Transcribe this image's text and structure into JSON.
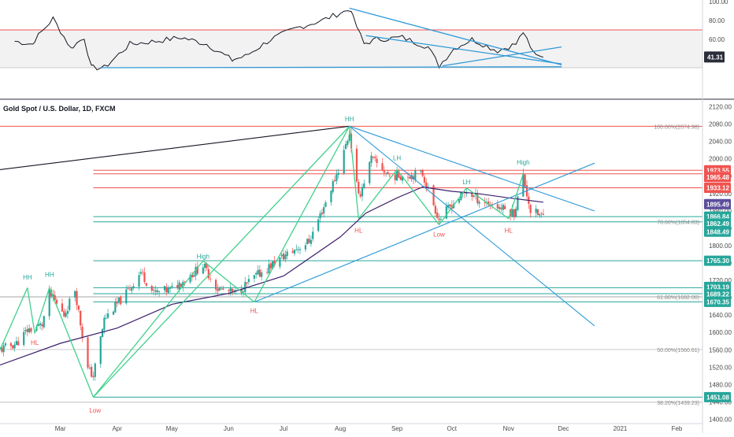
{
  "chart_data": [
    {
      "type": "line",
      "indicator_value": "41.31",
      "ylim": [
        0,
        100
      ],
      "y_ticks": [
        "100.00",
        "80.00",
        "60.00",
        "40.00"
      ],
      "overbought_level": 70,
      "oversold_level": 30,
      "series": [
        {
          "color": "#131722",
          "x": [
            "2020-02-05",
            "2020-02-15",
            "2020-02-26",
            "2020-03-07",
            "2020-03-14",
            "2020-03-18",
            "2020-03-25",
            "2020-04-08",
            "2020-04-22",
            "2020-05-06",
            "2020-05-20",
            "2020-06-03",
            "2020-06-10",
            "2020-06-24",
            "2020-07-08",
            "2020-07-22",
            "2020-08-01",
            "2020-08-07",
            "2020-08-14",
            "2020-08-21",
            "2020-09-04",
            "2020-09-18",
            "2020-09-24",
            "2020-10-02",
            "2020-10-12",
            "2020-10-26",
            "2020-11-05",
            "2020-11-09",
            "2020-11-13",
            "2020-11-20"
          ],
          "values": [
            58,
            55,
            82,
            50,
            62,
            30,
            30,
            55,
            58,
            62,
            55,
            38,
            42,
            60,
            72,
            80,
            88,
            92,
            55,
            60,
            62,
            52,
            32,
            50,
            60,
            48,
            55,
            68,
            50,
            41
          ]
        }
      ],
      "trendlines": [
        {
          "from": [
            "2020-03-23",
            30
          ],
          "to": [
            "2020-11-30",
            31
          ],
          "color": "#2e9ad8"
        },
        {
          "from": [
            "2020-08-06",
            93
          ],
          "to": [
            "2020-11-30",
            33
          ],
          "color": "#2e9ad8"
        },
        {
          "from": [
            "2020-08-15",
            64
          ],
          "to": [
            "2020-11-30",
            34
          ],
          "color": "#2e9ad8"
        },
        {
          "from": [
            "2020-09-26",
            32
          ],
          "to": [
            "2020-11-30",
            52
          ],
          "color": "#2e9ad8"
        }
      ]
    },
    {
      "type": "candlestick",
      "title": "Gold Spot / U.S. Dollar, 1D, FXCM",
      "x_ticks": [
        "Mar",
        "Apr",
        "May",
        "Jun",
        "Jul",
        "Aug",
        "Sep",
        "Oct",
        "Nov",
        "Dec",
        "2021",
        "Feb"
      ],
      "x_range": [
        "2020-01-28",
        "2021-02-15"
      ],
      "ylim": [
        1390,
        2130
      ],
      "y_ticks": [
        1400,
        1440,
        1480,
        1520,
        1560,
        1600,
        1640,
        1680,
        1720,
        1760,
        1800,
        1840,
        1880,
        1920,
        1960,
        2000,
        2040,
        2080,
        2120
      ],
      "bullish_color": "#26a69a",
      "bearish_color": "#ef5350",
      "price_anchors": {
        "x": [
          "2020-01-28",
          "2020-02-06",
          "2020-02-12",
          "2020-02-20",
          "2020-02-24",
          "2020-03-03",
          "2020-03-09",
          "2020-03-16",
          "2020-03-19",
          "2020-03-25",
          "2020-04-06",
          "2020-04-14",
          "2020-04-21",
          "2020-05-01",
          "2020-05-18",
          "2020-05-26",
          "2020-06-05",
          "2020-06-16",
          "2020-07-01",
          "2020-07-15",
          "2020-07-24",
          "2020-07-31",
          "2020-08-06",
          "2020-08-11",
          "2020-08-18",
          "2020-08-28",
          "2020-09-15",
          "2020-09-24",
          "2020-10-01",
          "2020-10-09",
          "2020-10-16",
          "2020-10-26",
          "2020-11-04",
          "2020-11-09",
          "2020-11-13",
          "2020-11-20"
        ],
        "values": [
          1560,
          1575,
          1605,
          1618,
          1690,
          1640,
          1700,
          1515,
          1500,
          1630,
          1690,
          1740,
          1690,
          1700,
          1755,
          1700,
          1690,
          1730,
          1775,
          1810,
          1900,
          1975,
          2060,
          1910,
          2000,
          1960,
          1965,
          1860,
          1895,
          1925,
          1905,
          1890,
          1875,
          1960,
          1880,
          1867
        ]
      },
      "moving_average": {
        "color": "#3b1e6b",
        "x": [
          "2020-01-28",
          "2020-03-01",
          "2020-04-01",
          "2020-05-01",
          "2020-06-01",
          "2020-07-01",
          "2020-08-01",
          "2020-08-15",
          "2020-09-01",
          "2020-09-15",
          "2020-10-01",
          "2020-10-15",
          "2020-11-01",
          "2020-11-20"
        ],
        "values": [
          1525,
          1575,
          1610,
          1665,
          1690,
          1730,
          1820,
          1875,
          1910,
          1935,
          1925,
          1920,
          1910,
          1900
        ]
      },
      "horizontal_levels": [
        {
          "price": 2074.98,
          "color": "#ef5350",
          "label": "100.00%(2074.98)"
        },
        {
          "price": 1973.55,
          "color": "#ef5350"
        },
        {
          "price": 1965.48,
          "color": "#ef5350"
        },
        {
          "price": 1933.12,
          "color": "#ef5350"
        },
        {
          "price": 1866.84,
          "color": "#26a69a"
        },
        {
          "price": 1854.83,
          "color": "#26a69a",
          "label": "78.60%(1854.83)"
        },
        {
          "price": 1765.3,
          "color": "#26a69a"
        },
        {
          "price": 1703.19,
          "color": "#26a69a"
        },
        {
          "price": 1689.22,
          "color": "#26a69a"
        },
        {
          "price": 1682.0,
          "color": "#888888",
          "label": "61.80%(1682.00)"
        },
        {
          "price": 1670.35,
          "color": "#26a69a"
        },
        {
          "price": 1560.61,
          "color": "#aaaaaa",
          "label": "50.00%(1560.61)"
        },
        {
          "price": 1451.08,
          "color": "#26a69a"
        },
        {
          "price": 1439.23,
          "color": "#aaaaaa",
          "label": "38.20%(1439.23)"
        }
      ],
      "price_badges": [
        {
          "text": "1973.55",
          "price": 1973.55,
          "color": "#ef5350"
        },
        {
          "text": "1965.48",
          "price": 1958.0,
          "color": "#ef5350"
        },
        {
          "text": "1933.12",
          "price": 1933.12,
          "color": "#ef5350"
        },
        {
          "text": "1895.49",
          "price": 1895.49,
          "color": "#5b4d9c"
        },
        {
          "text": "1866.84",
          "price": 1866.84,
          "color": "#26a69a"
        },
        {
          "text": "1862.49",
          "price": 1851.0,
          "color": "#26a69a"
        },
        {
          "text": "1848.49",
          "price": 1832.0,
          "color": "#26a69a"
        },
        {
          "text": "1765.30",
          "price": 1765.3,
          "color": "#26a69a"
        },
        {
          "text": "1703.19",
          "price": 1705.0,
          "color": "#26a69a"
        },
        {
          "text": "1689.22",
          "price": 1688.0,
          "color": "#26a69a"
        },
        {
          "text": "1670.35",
          "price": 1670.35,
          "color": "#26a69a"
        },
        {
          "text": "1451.08",
          "price": 1451.08,
          "color": "#26a69a"
        }
      ],
      "annotations": [
        {
          "text": "HH",
          "x": "2020-02-12",
          "price": 1727,
          "color": "#26a69a"
        },
        {
          "text": "HH",
          "x": "2020-02-24",
          "price": 1734,
          "color": "#26a69a"
        },
        {
          "text": "HL",
          "x": "2020-02-16",
          "price": 1577,
          "color": "#ef5350"
        },
        {
          "text": "Low",
          "x": "2020-03-20",
          "price": 1421,
          "color": "#ef5350"
        },
        {
          "text": "High",
          "x": "2020-05-18",
          "price": 1775,
          "color": "#26a69a"
        },
        {
          "text": "HL",
          "x": "2020-06-15",
          "price": 1650,
          "color": "#ef5350"
        },
        {
          "text": "HH",
          "x": "2020-08-06",
          "price": 2092,
          "color": "#26a69a"
        },
        {
          "text": "HL",
          "x": "2020-08-11",
          "price": 1835,
          "color": "#ef5350"
        },
        {
          "text": "LH",
          "x": "2020-09-01",
          "price": 2002,
          "color": "#26a69a"
        },
        {
          "text": "Low",
          "x": "2020-09-24",
          "price": 1826,
          "color": "#ef5350"
        },
        {
          "text": "LH",
          "x": "2020-10-09",
          "price": 1947,
          "color": "#26a69a"
        },
        {
          "text": "HL",
          "x": "2020-11-01",
          "price": 1835,
          "color": "#ef5350"
        },
        {
          "text": "High",
          "x": "2020-11-09",
          "price": 1992,
          "color": "#26a69a"
        }
      ],
      "trendlines": [
        {
          "from": [
            "2020-01-28",
            1975
          ],
          "to": [
            "2020-08-06",
            2075
          ],
          "color": "#131722"
        },
        {
          "from": [
            "2020-08-06",
            2075
          ],
          "to": [
            "2020-12-18",
            1615
          ],
          "color": "#2e9ad8"
        },
        {
          "from": [
            "2020-08-06",
            2075
          ],
          "to": [
            "2020-12-18",
            1880
          ],
          "color": "#2e9ad8"
        },
        {
          "from": [
            "2020-06-15",
            1670
          ],
          "to": [
            "2020-12-18",
            1990
          ],
          "color": "#2e9ad8"
        },
        {
          "from": [
            "2020-03-19",
            1451
          ],
          "to": [
            "2020-08-06",
            2075
          ],
          "color": "#3fd18b"
        },
        {
          "from": [
            "2020-01-28",
            1560
          ],
          "to": [
            "2020-02-12",
            1703
          ],
          "color": "#3fd18b"
        },
        {
          "from": [
            "2020-02-12",
            1703
          ],
          "to": [
            "2020-02-16",
            1598
          ],
          "color": "#3fd18b"
        },
        {
          "from": [
            "2020-02-16",
            1598
          ],
          "to": [
            "2020-02-24",
            1703
          ],
          "color": "#3fd18b"
        },
        {
          "from": [
            "2020-02-24",
            1703
          ],
          "to": [
            "2020-03-19",
            1451
          ],
          "color": "#3fd18b"
        },
        {
          "from": [
            "2020-03-19",
            1451
          ],
          "to": [
            "2020-05-18",
            1765
          ],
          "color": "#3fd18b"
        },
        {
          "from": [
            "2020-05-18",
            1765
          ],
          "to": [
            "2020-06-15",
            1670
          ],
          "color": "#3fd18b"
        },
        {
          "from": [
            "2020-06-15",
            1670
          ],
          "to": [
            "2020-08-06",
            2075
          ],
          "color": "#3fd18b"
        },
        {
          "from": [
            "2020-08-06",
            2075
          ],
          "to": [
            "2020-08-11",
            1862
          ],
          "color": "#3fd18b"
        },
        {
          "from": [
            "2020-08-11",
            1862
          ],
          "to": [
            "2020-09-01",
            1975
          ],
          "color": "#3fd18b"
        },
        {
          "from": [
            "2020-09-01",
            1975
          ],
          "to": [
            "2020-09-24",
            1848
          ],
          "color": "#3fd18b"
        },
        {
          "from": [
            "2020-09-24",
            1848
          ],
          "to": [
            "2020-10-09",
            1933
          ],
          "color": "#3fd18b"
        },
        {
          "from": [
            "2020-10-09",
            1933
          ],
          "to": [
            "2020-11-01",
            1862
          ],
          "color": "#3fd18b"
        },
        {
          "from": [
            "2020-11-01",
            1862
          ],
          "to": [
            "2020-11-09",
            1965
          ],
          "color": "#3fd18b"
        }
      ]
    }
  ]
}
